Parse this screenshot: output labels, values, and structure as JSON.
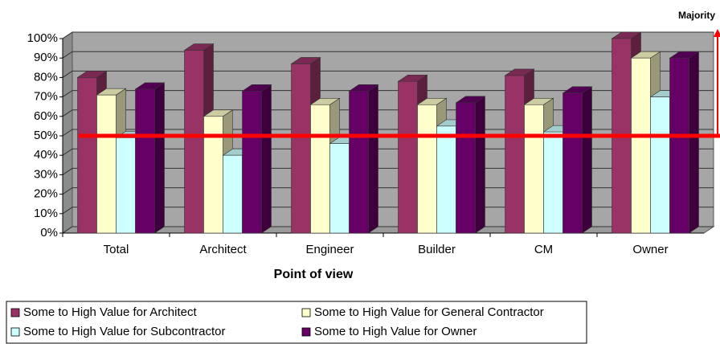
{
  "chart_data": {
    "type": "bar3d",
    "categories": [
      "Total",
      "Architect",
      "Engineer",
      "Builder",
      "CM",
      "Owner"
    ],
    "series": [
      {
        "name": "Some to High Value for Architect",
        "color": "#993366",
        "values": [
          80,
          94,
          87,
          78,
          81,
          100
        ]
      },
      {
        "name": "Some to High Value for General Contractor",
        "color": "#ffffcc",
        "values": [
          71,
          60,
          66,
          66,
          66,
          90
        ]
      },
      {
        "name": "Some to High Value for Subcontractor",
        "color": "#ccffff",
        "values": [
          49,
          40,
          46,
          55,
          52,
          70
        ]
      },
      {
        "name": "Some to High Value for Owner",
        "color": "#660066",
        "values": [
          74,
          73,
          73,
          67,
          72,
          90
        ]
      }
    ],
    "xlabel": "Point of view",
    "ylim": [
      0,
      100
    ],
    "yticks": [
      {
        "value": 0,
        "label": "0%"
      },
      {
        "value": 10,
        "label": "10%"
      },
      {
        "value": 20,
        "label": "20%"
      },
      {
        "value": 30,
        "label": "30%"
      },
      {
        "value": 40,
        "label": "40%"
      },
      {
        "value": 50,
        "label": "50%"
      },
      {
        "value": 60,
        "label": "60%"
      },
      {
        "value": 70,
        "label": "70%"
      },
      {
        "value": 80,
        "label": "80%"
      },
      {
        "value": 90,
        "label": "90%"
      },
      {
        "value": 100,
        "label": "100%"
      }
    ],
    "grid": true,
    "annotation": {
      "text": "Majority",
      "value": 50,
      "color": "#ff0000"
    },
    "legend": "bottom"
  }
}
